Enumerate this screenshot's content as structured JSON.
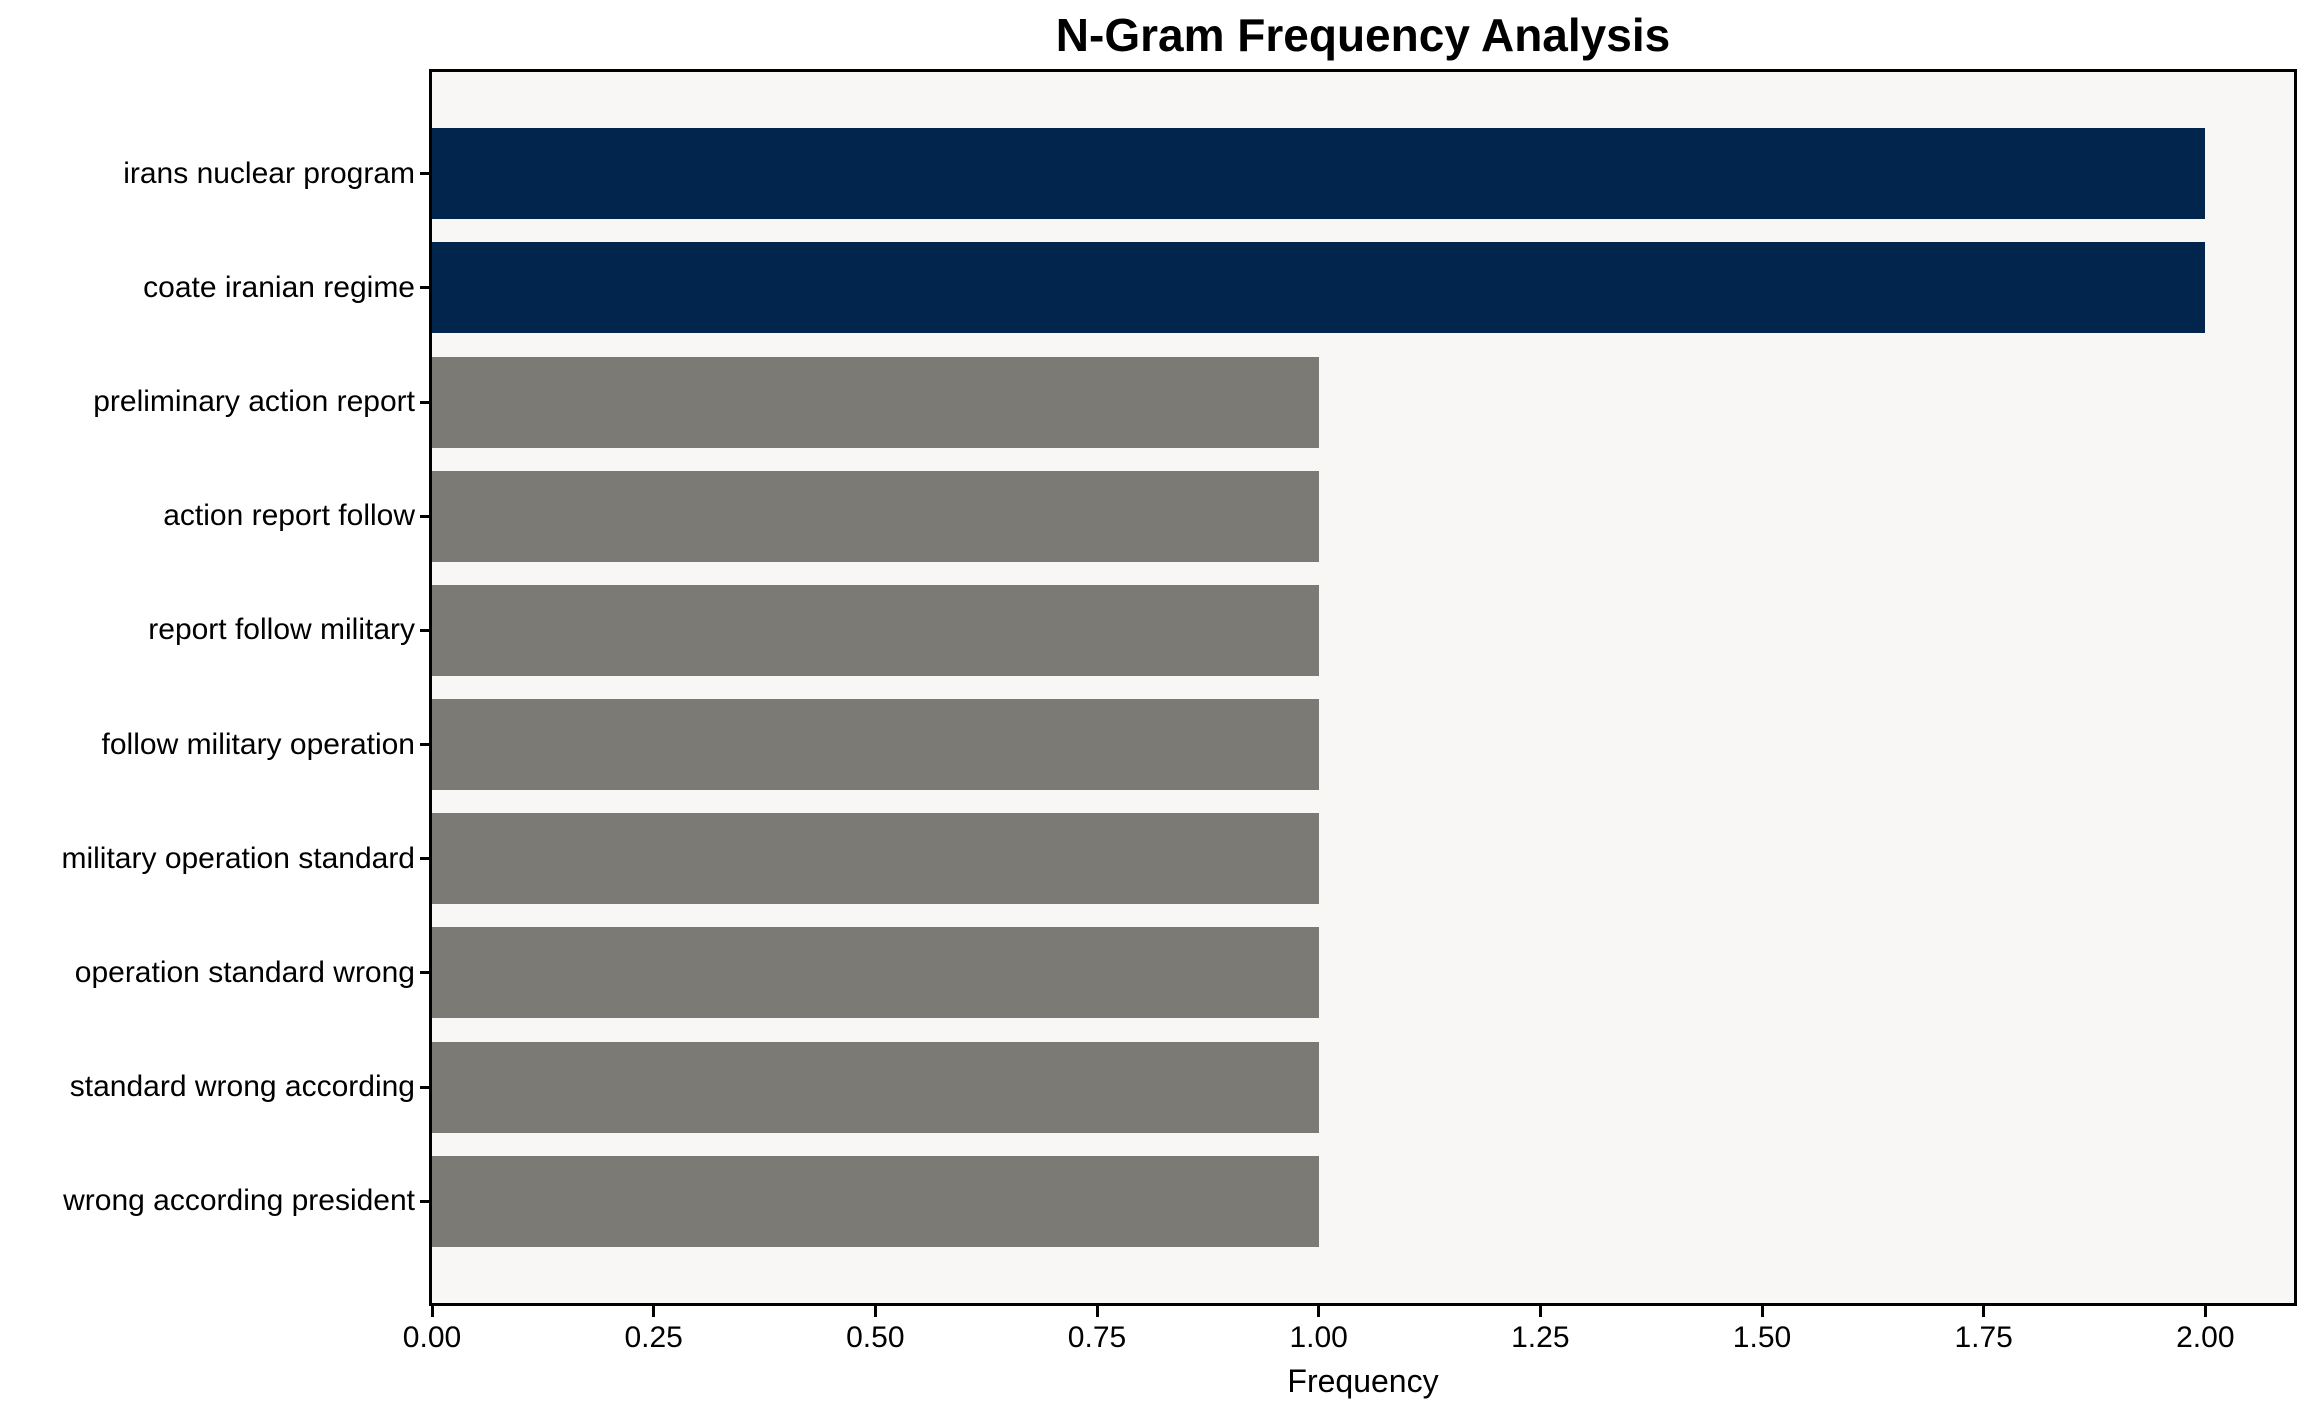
{
  "figure": {
    "background_color": "#ffffff"
  },
  "chart_data": {
    "type": "bar",
    "orientation": "horizontal",
    "title": "N-Gram Frequency Analysis",
    "xlabel": "Frequency",
    "ylabel": "",
    "categories": [
      "irans nuclear program",
      "coate iranian regime",
      "preliminary action report",
      "action report follow",
      "report follow military",
      "follow military operation",
      "military operation standard",
      "operation standard wrong",
      "standard wrong according",
      "wrong according president"
    ],
    "values": [
      2,
      2,
      1,
      1,
      1,
      1,
      1,
      1,
      1,
      1
    ],
    "bar_colors": [
      "#02254e",
      "#02254e",
      "#7b7a75",
      "#7b7a75",
      "#7b7a75",
      "#7b7a75",
      "#7b7a75",
      "#7b7a75",
      "#7b7a75",
      "#7b7a75"
    ],
    "xlim": [
      0,
      2.1
    ],
    "xtick_labels": [
      "0.00",
      "0.25",
      "0.50",
      "0.75",
      "1.00",
      "1.25",
      "1.50",
      "1.75",
      "2.00"
    ],
    "xtick_values": [
      0,
      0.25,
      0.5,
      0.75,
      1.0,
      1.25,
      1.5,
      1.75,
      2.0
    ],
    "grid": false,
    "legend_position": "none",
    "plot_background": "#f8f7f6",
    "spine_color": "#000000",
    "text_color": "#000000"
  }
}
